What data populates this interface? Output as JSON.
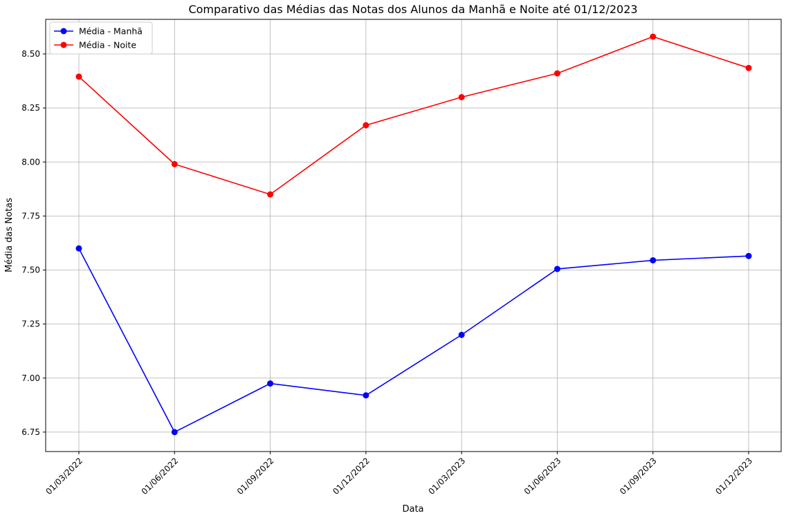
{
  "chart_data": {
    "type": "line",
    "title": "Comparativo das Médias das Notas dos Alunos da Manhã e Noite até 01/12/2023",
    "xlabel": "Data",
    "ylabel": "Média das Notas",
    "categories": [
      "01/03/2022",
      "01/06/2022",
      "01/09/2022",
      "01/12/2022",
      "01/03/2023",
      "01/06/2023",
      "01/09/2023",
      "01/12/2023"
    ],
    "ylim": [
      6.66,
      8.66
    ],
    "yticks": [
      "6.75",
      "7.00",
      "7.25",
      "7.50",
      "7.75",
      "8.00",
      "8.25",
      "8.50"
    ],
    "grid": true,
    "legend_position": "top-left",
    "series": [
      {
        "name": "Média - Manhã",
        "color": "#0000ff",
        "marker": "circle",
        "values": [
          7.6,
          6.75,
          6.975,
          6.92,
          7.2,
          7.505,
          7.545,
          7.565
        ]
      },
      {
        "name": "Média - Noite",
        "color": "#ff0000",
        "marker": "circle",
        "values": [
          8.395,
          7.99,
          7.85,
          8.17,
          8.3,
          8.41,
          8.58,
          8.435
        ]
      }
    ]
  }
}
